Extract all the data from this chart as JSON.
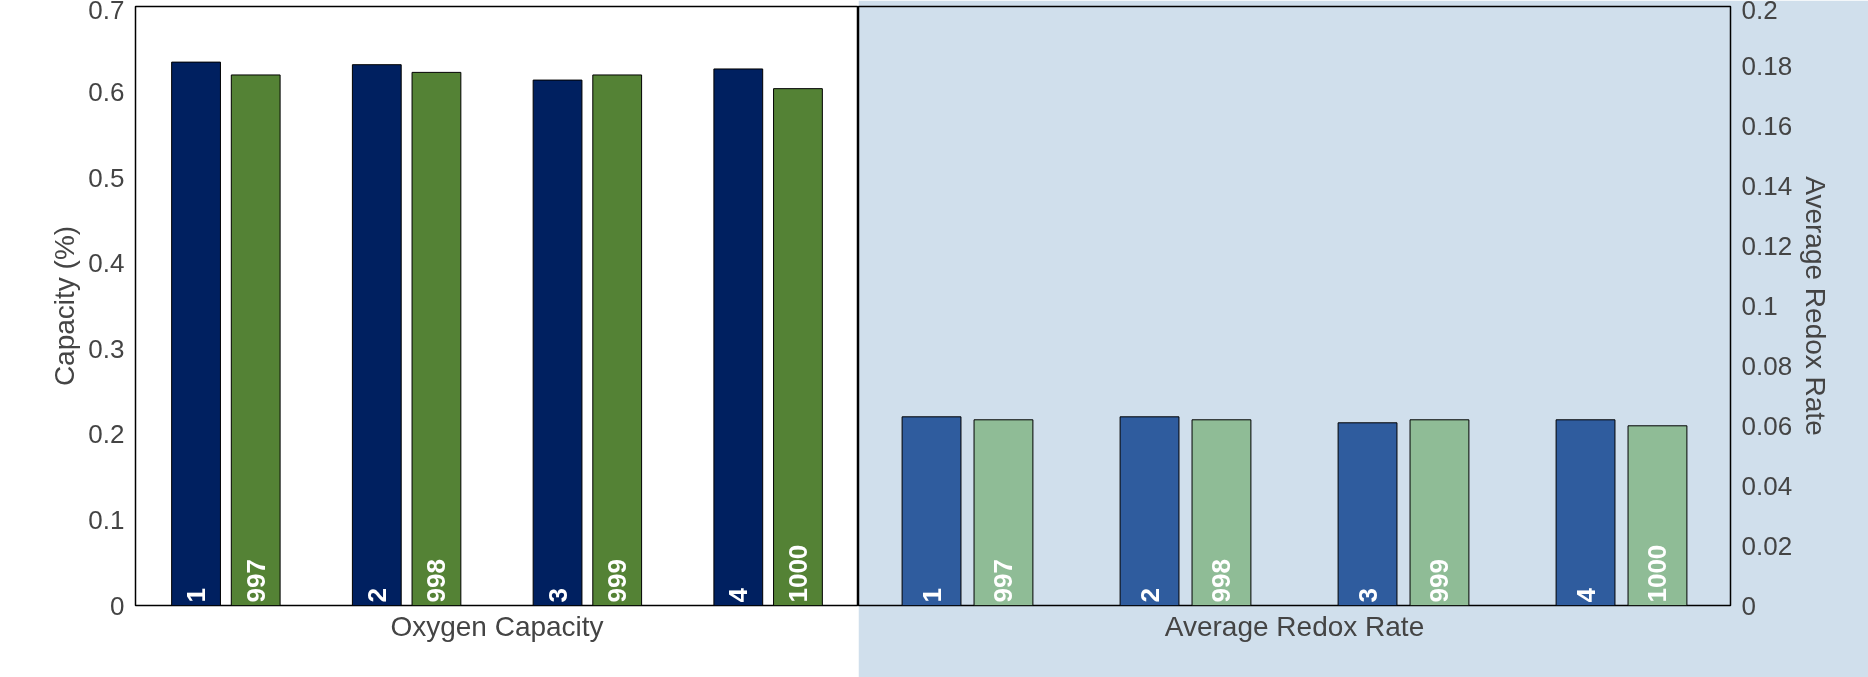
{
  "chart_data": [
    {
      "type": "bar",
      "xlabel": "Oxygen Capacity",
      "ylabel": "Capacity (%)",
      "categories": [
        "1",
        "997",
        "2",
        "998",
        "3",
        "999",
        "4",
        "1000"
      ],
      "ylim": [
        0,
        0.7
      ],
      "yticks": [
        0,
        0.1,
        0.2,
        0.3,
        0.4,
        0.5,
        0.6,
        0.7
      ],
      "grid": false,
      "values": [
        0.635,
        0.62,
        0.632,
        0.623,
        0.614,
        0.62,
        0.627,
        0.604
      ],
      "colors": [
        "#002060",
        "#548235",
        "#002060",
        "#548235",
        "#002060",
        "#548235",
        "#002060",
        "#548235"
      ]
    },
    {
      "type": "bar",
      "xlabel": "Average Redox Rate",
      "ylabel": "Average Redox Rate",
      "categories": [
        "1",
        "997",
        "2",
        "998",
        "3",
        "999",
        "4",
        "1000"
      ],
      "ylim": [
        0,
        0.2
      ],
      "yticks": [
        0,
        0.02,
        0.04,
        0.06,
        0.08,
        0.1,
        0.12,
        0.14,
        0.16,
        0.18,
        0.2
      ],
      "grid": false,
      "values": [
        0.063,
        0.062,
        0.063,
        0.062,
        0.061,
        0.062,
        0.062,
        0.06
      ],
      "colors": [
        "#2f5c9e",
        "#8fbc96",
        "#2f5c9e",
        "#8fbc96",
        "#2f5c9e",
        "#8fbc96",
        "#2f5c9e",
        "#8fbc96"
      ]
    }
  ]
}
